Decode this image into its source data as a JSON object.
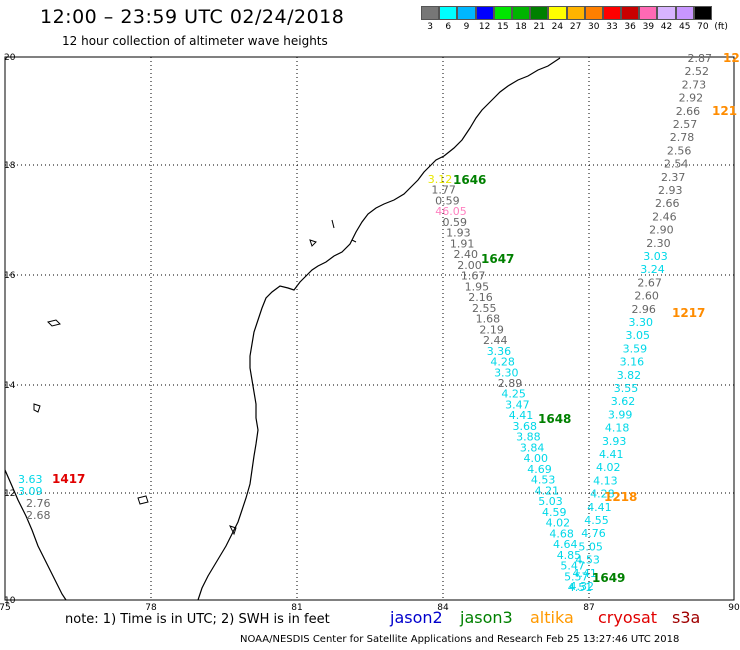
{
  "header": {
    "title": "12:00 – 23:59 UTC 02/24/2018",
    "subtitle": "12 hour collection of altimeter wave heights"
  },
  "scale": {
    "colors": [
      "#777777",
      "#00ffff",
      "#00b7ff",
      "#0000ff",
      "#00e600",
      "#00b400",
      "#008000",
      "#ffff00",
      "#ffb400",
      "#ff7f00",
      "#ff0000",
      "#c80000",
      "#ff69b4",
      "#d8b4fe",
      "#c896ff",
      "#000000"
    ],
    "labels": [
      "3",
      "6",
      "9",
      "12",
      "15",
      "18",
      "21",
      "24",
      "27",
      "30",
      "33",
      "36",
      "39",
      "42",
      "45",
      "70",
      "(ft)"
    ]
  },
  "axes": {
    "x_ticks": [
      "75",
      "78",
      "81",
      "84",
      "87",
      "90"
    ],
    "y_ticks": [
      "20",
      "18",
      "16",
      "14",
      "12",
      "10"
    ]
  },
  "passes": [
    {
      "label": "1646",
      "color": "#008000"
    },
    {
      "label": "1647",
      "color": "#008000"
    },
    {
      "label": "1648",
      "color": "#008000"
    },
    {
      "label": "1649",
      "color": "#008000"
    },
    {
      "label": "1417",
      "color": "#e00000"
    },
    {
      "label": "1217",
      "color": "#ff8c00"
    },
    {
      "label": "1218",
      "color": "#ff8c00"
    },
    {
      "label": "121",
      "color": "#ff8c00"
    },
    {
      "label": "12",
      "color": "#ff8c00"
    }
  ],
  "values": {
    "right_track": [
      "2.87",
      "2.52",
      "2.73",
      "2.92",
      "2.66",
      "2.57",
      "2.78",
      "2.56",
      "2.54",
      "2.37",
      "2.93",
      "2.66",
      "2.46",
      "2.90",
      "2.30",
      "3.03",
      "3.24",
      "2.67",
      "2.60",
      "2.96",
      "3.30",
      "3.05",
      "3.59",
      "3.16",
      "3.82",
      "3.55",
      "3.62",
      "3.99",
      "4.18",
      "3.93",
      "4.41",
      "4.02",
      "4.13",
      "4.28",
      "4.41",
      "4.55",
      "4.76",
      "5.05",
      "4.53",
      "4.41",
      "4.32"
    ],
    "middle_track": [
      "3.12",
      "1.77",
      "0.59",
      "46.05",
      "0.59",
      "1.93",
      "1.91",
      "2.40",
      "2.00",
      "1.67",
      "1.95",
      "2.16",
      "2.55",
      "1.68",
      "2.19",
      "2.44",
      "3.36",
      "4.28",
      "3.30",
      "2.89",
      "4.25",
      "3.47",
      "4.41",
      "3.68",
      "3.88",
      "3.84",
      "4.00",
      "4.69",
      "4.53",
      "4.21",
      "5.03",
      "4.59",
      "4.02",
      "4.68",
      "4.64",
      "4.85",
      "5.47",
      "5.57",
      "4.51"
    ],
    "left_track": [
      "3.63",
      "3.09",
      "2.76",
      "2.68"
    ]
  },
  "footer": {
    "note": "note:  1) Time is in UTC;  2) SWH is in feet",
    "sats": [
      {
        "name": "jason2",
        "color": "#0000cc"
      },
      {
        "name": "jason3",
        "color": "#008000"
      },
      {
        "name": "altika",
        "color": "#ff9900"
      },
      {
        "name": "cryosat",
        "color": "#e00000"
      },
      {
        "name": "s3a",
        "color": "#a00000"
      }
    ],
    "credit": "NOAA/NESDIS Center for Satellite Applications and Research     Feb 25 13:27:46 UTC 2018"
  }
}
